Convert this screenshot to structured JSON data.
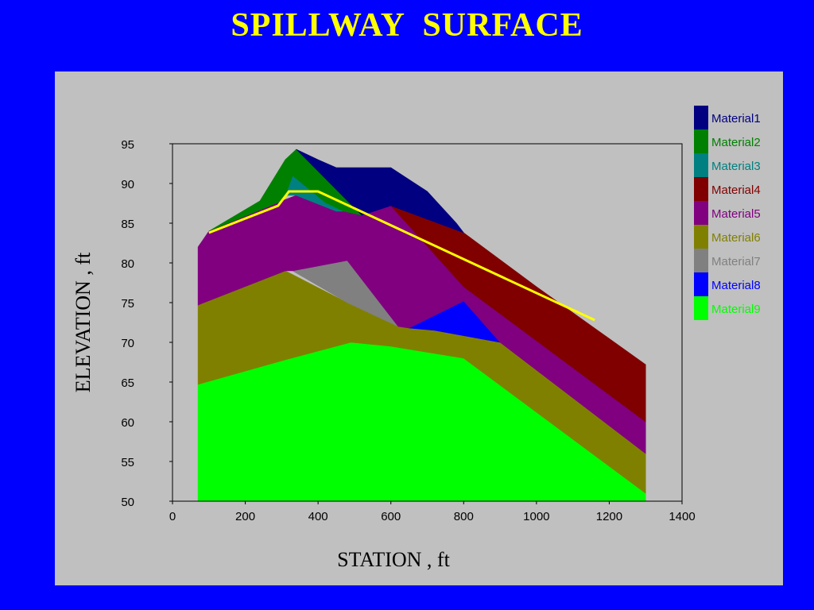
{
  "slide": {
    "title": "SPILLWAY  SURFACE"
  },
  "colors": {
    "background": "#0000ff",
    "title": "#ffff00",
    "panel": "#c0c0c0",
    "surface_line": "#ffff00"
  },
  "chart_data": {
    "type": "area",
    "xlabel": "STATION , ft",
    "ylabel": "ELEVATION , ft",
    "xlim": [
      0,
      1400
    ],
    "ylim": [
      50,
      95
    ],
    "xticks": [
      0,
      200,
      400,
      600,
      800,
      1000,
      1200,
      1400
    ],
    "yticks": [
      50,
      55,
      60,
      65,
      70,
      75,
      80,
      85,
      90,
      95
    ],
    "legend_position": "right",
    "legend": [
      {
        "name": "Material1",
        "color": "#000080"
      },
      {
        "name": "Material2",
        "color": "#008000"
      },
      {
        "name": "Material3",
        "color": "#008080"
      },
      {
        "name": "Material4",
        "color": "#800000"
      },
      {
        "name": "Material5",
        "color": "#800080"
      },
      {
        "name": "Material6",
        "color": "#808000"
      },
      {
        "name": "Material7",
        "color": "#808080"
      },
      {
        "name": "Material8",
        "color": "#0000ff"
      },
      {
        "name": "Material9",
        "color": "#00ff00"
      }
    ],
    "regions": [
      {
        "material": "Material9",
        "points": [
          [
            70,
            50
          ],
          [
            70,
            64.7
          ],
          [
            310,
            67.8
          ],
          [
            490,
            70
          ],
          [
            600,
            69.5
          ],
          [
            800,
            68
          ],
          [
            1300,
            51
          ],
          [
            1300,
            50
          ]
        ]
      },
      {
        "material": "Material6",
        "points": [
          [
            70,
            64.7
          ],
          [
            70,
            74.7
          ],
          [
            310,
            79
          ],
          [
            480,
            75
          ],
          [
            620,
            72
          ],
          [
            720,
            71.5
          ],
          [
            900,
            70
          ],
          [
            1300,
            56
          ],
          [
            1300,
            51
          ],
          [
            800,
            68
          ],
          [
            600,
            69.5
          ],
          [
            490,
            70
          ],
          [
            310,
            67.8
          ]
        ]
      },
      {
        "material": "Material7",
        "points": [
          [
            330,
            79
          ],
          [
            480,
            80.3
          ],
          [
            620,
            72
          ],
          [
            480,
            75
          ]
        ]
      },
      {
        "material": "Material8",
        "points": [
          [
            650,
            71.8
          ],
          [
            800,
            75.2
          ],
          [
            900,
            70
          ],
          [
            720,
            71.5
          ]
        ]
      },
      {
        "material": "Material5",
        "points": [
          [
            70,
            74.7
          ],
          [
            70,
            82
          ],
          [
            100,
            84
          ],
          [
            300,
            87.8
          ],
          [
            340,
            88.5
          ],
          [
            450,
            86.5
          ],
          [
            600,
            87.2
          ],
          [
            800,
            77
          ],
          [
            1300,
            60
          ],
          [
            1300,
            56
          ],
          [
            900,
            70
          ],
          [
            800,
            75.2
          ],
          [
            650,
            71.8
          ],
          [
            620,
            72
          ],
          [
            480,
            80.3
          ],
          [
            330,
            79
          ],
          [
            310,
            79
          ]
        ]
      },
      {
        "material": "Material4",
        "points": [
          [
            600,
            87.2
          ],
          [
            800,
            83.8
          ],
          [
            1000,
            77
          ],
          [
            1300,
            67.2
          ],
          [
            1300,
            60
          ],
          [
            800,
            77
          ]
        ]
      },
      {
        "material": "Material3",
        "points": [
          [
            310,
            88.5
          ],
          [
            330,
            91
          ],
          [
            420,
            87.6
          ],
          [
            470,
            86.5
          ],
          [
            450,
            86.5
          ],
          [
            340,
            88.5
          ]
        ]
      },
      {
        "material": "Material2",
        "points": [
          [
            100,
            84
          ],
          [
            240,
            87.8
          ],
          [
            310,
            93
          ],
          [
            340,
            94.3
          ],
          [
            520,
            86
          ],
          [
            470,
            86.5
          ],
          [
            420,
            87.6
          ],
          [
            330,
            91
          ],
          [
            310,
            88.5
          ],
          [
            300,
            87.8
          ]
        ]
      },
      {
        "material": "Material1",
        "points": [
          [
            340,
            94.3
          ],
          [
            400,
            93
          ],
          [
            450,
            92
          ],
          [
            600,
            92
          ],
          [
            700,
            89
          ],
          [
            780,
            85
          ],
          [
            800,
            83.8
          ],
          [
            600,
            87.2
          ],
          [
            520,
            86
          ]
        ]
      }
    ],
    "surface_line": {
      "points": [
        [
          100,
          83.8
        ],
        [
          290,
          87.2
        ],
        [
          320,
          89
        ],
        [
          400,
          89
        ],
        [
          1160,
          72.8
        ]
      ]
    }
  }
}
